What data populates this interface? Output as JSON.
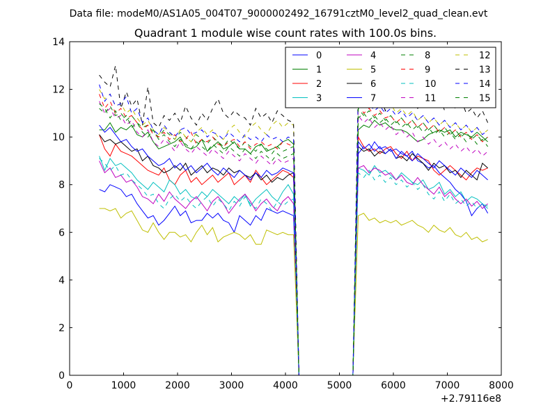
{
  "suptitle": "Data file: modeM0/AS1A05_004T07_9000002492_16791cztM0_level2_quad_clean.evt",
  "chart_data": {
    "type": "line",
    "title": "Quadrant 1 module wise count rates with 100.0s bins.",
    "xlabel": "",
    "ylabel": "",
    "x_offset_label": "+2.79116e8",
    "xlim": [
      0,
      8000
    ],
    "ylim": [
      0,
      14
    ],
    "xticks": [
      0,
      1000,
      2000,
      3000,
      4000,
      5000,
      6000,
      7000,
      8000
    ],
    "yticks": [
      0,
      2,
      4,
      6,
      8,
      10,
      12,
      14
    ],
    "grid": false,
    "legend_location": "top-right",
    "legend_columns": 4,
    "x": [
      550,
      650,
      750,
      850,
      950,
      1050,
      1150,
      1250,
      1350,
      1450,
      1550,
      1650,
      1750,
      1850,
      1950,
      2050,
      2150,
      2250,
      2350,
      2450,
      2550,
      2650,
      2750,
      2850,
      2950,
      3050,
      3150,
      3250,
      3350,
      3450,
      3550,
      3650,
      3750,
      3850,
      3950,
      4050,
      4150,
      4250,
      4350,
      4450,
      4550,
      4650,
      4750,
      4850,
      4950,
      5050,
      5150,
      5250,
      5350,
      5450,
      5550,
      5650,
      5750,
      5850,
      5950,
      6050,
      6150,
      6250,
      6350,
      6450,
      6550,
      6650,
      6750,
      6850,
      6950,
      7050,
      7150,
      7250,
      7350,
      7450,
      7550,
      7650,
      7750
    ],
    "series": [
      {
        "name": "0",
        "color": "#0000ff",
        "dash": "solid",
        "pre": [
          7.8,
          7.7,
          8.0,
          7.9,
          7.8,
          7.5,
          7.6,
          7.2,
          6.9,
          6.6,
          6.7,
          6.3,
          6.5,
          6.8,
          7.1,
          6.7,
          6.9,
          6.4,
          6.5,
          6.5,
          6.8,
          6.6,
          6.8,
          6.5,
          6.4,
          6.0,
          6.7,
          6.5,
          6.3,
          6.7,
          6.5,
          7.0,
          6.9,
          6.8,
          6.9,
          6.8,
          6.7
        ],
        "post": [
          9.3,
          9.6,
          9.4,
          9.8,
          9.5,
          9.6,
          9.4,
          9.5,
          9.3,
          9.2,
          9.4,
          9.0,
          8.9,
          8.7,
          8.8,
          8.5,
          8.3,
          8.1,
          7.8,
          7.6,
          7.3,
          6.7,
          7.0,
          7.2,
          6.8
        ]
      },
      {
        "name": "1",
        "color": "#007f00",
        "dash": "solid",
        "pre": [
          10.3,
          10.3,
          10.6,
          10.2,
          10.4,
          10.3,
          10.5,
          10.1,
          10.0,
          10.2,
          9.8,
          9.5,
          9.6,
          9.7,
          9.8,
          10.0,
          9.6,
          9.5,
          9.6,
          9.9,
          9.4,
          9.6,
          9.8,
          9.5,
          9.6,
          9.8,
          9.5,
          9.5,
          9.3,
          9.6,
          9.7,
          9.4,
          9.5,
          9.6,
          9.8,
          9.9,
          9.7
        ],
        "post": [
          10.3,
          10.5,
          10.4,
          10.7,
          10.5,
          10.6,
          10.4,
          10.3,
          10.3,
          10.2,
          10.0,
          9.8,
          9.9,
          10.1,
          10.2,
          10.3,
          10.2,
          10.3,
          10.0,
          10.2,
          10.1,
          10.0,
          10.2,
          10.0,
          9.8
        ]
      },
      {
        "name": "2",
        "color": "#ff0000",
        "dash": "solid",
        "pre": [
          10.1,
          9.5,
          9.2,
          9.7,
          9.4,
          9.3,
          9.2,
          9.0,
          8.8,
          8.6,
          8.5,
          8.4,
          8.7,
          8.2,
          8.0,
          8.4,
          8.6,
          8.1,
          8.3,
          8.0,
          8.2,
          8.4,
          8.1,
          8.3,
          8.5,
          8.0,
          8.2,
          8.4,
          8.1,
          8.6,
          8.3,
          8.0,
          8.2,
          8.4,
          8.6,
          8.5,
          8.3
        ],
        "post": [
          10.0,
          9.6,
          9.4,
          9.5,
          9.3,
          9.5,
          9.6,
          9.3,
          9.1,
          9.4,
          9.0,
          9.2,
          9.1,
          9.0,
          8.6,
          8.4,
          8.6,
          8.8,
          8.6,
          8.4,
          8.2,
          8.5,
          8.7,
          8.6,
          8.7
        ]
      },
      {
        "name": "3",
        "color": "#00bfbf",
        "dash": "solid",
        "pre": [
          9.2,
          8.6,
          9.1,
          8.8,
          8.9,
          8.7,
          8.5,
          8.2,
          8.0,
          7.8,
          8.1,
          7.9,
          7.7,
          8.2,
          8.0,
          7.6,
          7.8,
          7.5,
          7.4,
          7.7,
          7.5,
          7.8,
          7.6,
          7.4,
          7.2,
          7.5,
          7.3,
          7.6,
          7.1,
          7.4,
          7.6,
          7.8,
          7.5,
          7.3,
          7.7,
          8.0,
          7.6
        ],
        "post": [
          8.7,
          8.6,
          8.4,
          8.8,
          8.5,
          8.6,
          8.4,
          8.2,
          8.5,
          8.3,
          8.1,
          8.0,
          8.2,
          7.8,
          7.9,
          8.1,
          7.6,
          7.8,
          7.5,
          7.7,
          7.3,
          7.5,
          7.4,
          7.2,
          7.0
        ]
      },
      {
        "name": "4",
        "color": "#bf00bf",
        "dash": "solid",
        "pre": [
          9.0,
          8.5,
          8.7,
          8.3,
          8.4,
          8.1,
          8.2,
          7.9,
          7.5,
          7.4,
          7.2,
          7.6,
          7.3,
          7.7,
          7.4,
          7.2,
          7.0,
          7.3,
          7.5,
          7.2,
          6.9,
          7.3,
          7.5,
          7.2,
          6.8,
          7.1,
          7.4,
          7.6,
          7.3,
          6.9,
          7.2,
          7.4,
          7.1,
          6.9,
          7.3,
          7.5,
          7.2
        ],
        "post": [
          8.7,
          8.8,
          8.5,
          8.7,
          8.6,
          8.4,
          8.5,
          8.2,
          8.4,
          8.1,
          8.0,
          8.3,
          8.0,
          7.8,
          7.6,
          7.9,
          7.5,
          7.7,
          7.4,
          7.2,
          7.4,
          7.1,
          7.3,
          7.0,
          7.2
        ]
      },
      {
        "name": "5",
        "color": "#bfbf00",
        "dash": "solid",
        "pre": [
          7.0,
          7.0,
          6.9,
          7.0,
          6.6,
          6.8,
          6.9,
          6.5,
          6.1,
          6.0,
          6.4,
          6.0,
          5.7,
          6.0,
          6.0,
          5.8,
          5.9,
          5.6,
          6.0,
          6.3,
          5.9,
          6.2,
          5.6,
          5.8,
          5.9,
          6.0,
          5.9,
          5.7,
          5.9,
          5.5,
          5.5,
          6.1,
          6.0,
          5.9,
          6.0,
          5.9,
          5.9
        ],
        "post": [
          6.7,
          6.8,
          6.5,
          6.6,
          6.4,
          6.5,
          6.4,
          6.5,
          6.3,
          6.4,
          6.5,
          6.3,
          6.2,
          6.0,
          6.3,
          6.1,
          6.0,
          6.2,
          5.9,
          5.8,
          6.0,
          5.7,
          5.8,
          5.6,
          5.7
        ]
      },
      {
        "name": "6",
        "color": "#000000",
        "dash": "solid",
        "pre": [
          10.1,
          9.8,
          9.9,
          9.7,
          9.8,
          9.6,
          9.4,
          9.5,
          9.0,
          9.2,
          8.8,
          8.7,
          8.5,
          8.6,
          8.8,
          8.6,
          8.9,
          8.4,
          8.6,
          8.8,
          8.5,
          8.7,
          8.6,
          8.4,
          8.7,
          8.5,
          8.6,
          8.4,
          8.3,
          8.5,
          8.2,
          8.4,
          8.1,
          8.3,
          8.2,
          8.4,
          8.5
        ],
        "post": [
          9.6,
          9.4,
          9.5,
          9.2,
          9.4,
          9.3,
          9.5,
          9.1,
          9.2,
          9.0,
          9.3,
          9.1,
          8.9,
          8.6,
          8.9,
          8.7,
          8.8,
          8.5,
          8.6,
          8.3,
          8.6,
          8.4,
          8.2,
          8.9,
          8.7
        ]
      },
      {
        "name": "7",
        "color": "#0000ff",
        "dash": "solid",
        "pre": [
          10.5,
          10.2,
          10.4,
          10.1,
          9.8,
          9.9,
          9.6,
          9.4,
          9.5,
          9.2,
          9.0,
          8.8,
          8.9,
          9.1,
          8.7,
          8.9,
          8.6,
          8.8,
          8.5,
          8.7,
          8.9,
          8.6,
          8.4,
          8.7,
          8.5,
          8.3,
          8.6,
          8.4,
          8.2,
          8.5,
          8.3,
          8.6,
          8.4,
          8.5,
          8.7,
          8.6,
          8.5
        ],
        "post": [
          9.8,
          9.5,
          9.7,
          9.4,
          9.6,
          9.3,
          9.5,
          9.1,
          9.4,
          9.2,
          9.0,
          9.3,
          9.1,
          8.9,
          8.7,
          9.0,
          8.8,
          8.6,
          8.4,
          8.7,
          8.5,
          8.3,
          8.6,
          8.4,
          8.2
        ]
      },
      {
        "name": "8",
        "color": "#007f00",
        "dash": "dashed",
        "pre": [
          11.2,
          11.0,
          11.3,
          10.9,
          11.0,
          10.7,
          10.9,
          10.6,
          10.4,
          10.5,
          10.2,
          10.0,
          10.3,
          10.1,
          9.9,
          10.2,
          10.0,
          9.8,
          10.1,
          9.9,
          9.7,
          10.0,
          9.8,
          9.6,
          9.9,
          9.7,
          9.5,
          9.8,
          9.6,
          9.4,
          9.7,
          9.5,
          9.3,
          9.6,
          9.4,
          9.5,
          9.6
        ],
        "post": [
          10.8,
          11.0,
          10.7,
          10.9,
          10.6,
          10.8,
          10.5,
          10.7,
          10.4,
          10.6,
          10.3,
          10.5,
          10.2,
          10.4,
          10.1,
          10.3,
          10.0,
          10.2,
          9.9,
          10.1,
          9.8,
          10.0,
          9.7,
          9.9,
          9.6
        ]
      },
      {
        "name": "9",
        "color": "#ff0000",
        "dash": "dashed",
        "pre": [
          11.8,
          11.2,
          11.5,
          11.0,
          11.2,
          10.8,
          10.9,
          10.6,
          10.3,
          10.5,
          10.1,
          10.0,
          10.2,
          9.9,
          10.1,
          9.8,
          9.9,
          10.2,
          9.7,
          9.9,
          9.8,
          10.0,
          9.7,
          9.6,
          9.8,
          9.9,
          9.6,
          9.8,
          9.5,
          9.7,
          9.8,
          9.6,
          9.7,
          9.5,
          9.8,
          9.7,
          9.6
        ],
        "post": [
          11.5,
          11.0,
          11.2,
          10.9,
          11.1,
          10.8,
          10.9,
          10.6,
          10.8,
          10.5,
          10.7,
          10.4,
          10.6,
          10.3,
          10.5,
          10.2,
          10.4,
          10.1,
          10.3,
          10.0,
          10.2,
          9.9,
          10.1,
          9.8,
          10.0
        ]
      },
      {
        "name": "10",
        "color": "#00bfbf",
        "dash": "dashed",
        "pre": [
          9.1,
          8.9,
          8.6,
          8.8,
          8.4,
          8.5,
          8.2,
          8.0,
          7.8,
          7.5,
          7.6,
          7.2,
          7.0,
          7.4,
          7.6,
          7.3,
          7.5,
          7.2,
          7.0,
          7.3,
          7.5,
          7.1,
          7.4,
          7.2,
          6.9,
          7.3,
          7.1,
          7.5,
          7.2,
          7.0,
          7.4,
          7.2,
          6.9,
          7.3,
          7.1,
          7.3,
          7.4
        ],
        "post": [
          8.5,
          8.3,
          8.6,
          8.2,
          8.4,
          8.1,
          8.3,
          8.0,
          8.2,
          7.9,
          8.1,
          7.8,
          8.0,
          7.6,
          7.4,
          7.7,
          7.3,
          7.6,
          7.2,
          7.4,
          7.1,
          7.3,
          7.0,
          7.2,
          7.1
        ]
      },
      {
        "name": "11",
        "color": "#bf00bf",
        "dash": "dashed",
        "pre": [
          11.5,
          11.0,
          11.2,
          10.8,
          10.9,
          10.5,
          10.7,
          10.2,
          10.0,
          10.3,
          9.8,
          9.6,
          9.9,
          9.7,
          9.4,
          9.8,
          9.5,
          9.3,
          9.6,
          9.4,
          9.2,
          9.5,
          9.3,
          9.1,
          9.4,
          9.2,
          9.0,
          9.3,
          9.1,
          8.9,
          9.2,
          9.0,
          8.8,
          9.1,
          8.9,
          9.0,
          9.1
        ],
        "post": [
          10.9,
          10.6,
          10.8,
          10.4,
          10.6,
          10.3,
          10.5,
          10.1,
          10.3,
          10.0,
          10.2,
          9.8,
          10.0,
          9.7,
          9.9,
          9.6,
          9.8,
          9.5,
          9.7,
          9.4,
          9.6,
          9.3,
          9.5,
          9.2,
          9.4
        ]
      },
      {
        "name": "12",
        "color": "#bfbf00",
        "dash": "dashed",
        "pre": [
          12.0,
          11.6,
          11.8,
          11.3,
          11.4,
          11.0,
          11.2,
          10.8,
          10.5,
          10.7,
          10.3,
          10.1,
          10.4,
          10.2,
          9.9,
          10.3,
          10.0,
          9.8,
          10.2,
          10.4,
          10.1,
          10.3,
          10.0,
          9.9,
          10.3,
          10.5,
          10.2,
          10.0,
          10.4,
          10.6,
          10.3,
          10.1,
          10.5,
          10.7,
          10.4,
          10.6,
          10.5
        ],
        "post": [
          11.8,
          11.5,
          11.7,
          11.3,
          11.5,
          11.2,
          11.4,
          11.0,
          11.2,
          10.9,
          11.1,
          10.7,
          10.9,
          10.6,
          10.8,
          10.5,
          10.7,
          10.4,
          10.6,
          10.3,
          10.5,
          10.2,
          10.4,
          10.1,
          10.3
        ]
      },
      {
        "name": "13",
        "color": "#000000",
        "dash": "dashed",
        "pre": [
          12.6,
          12.3,
          12.1,
          13.0,
          11.2,
          11.9,
          11.3,
          11.6,
          10.5,
          12.1,
          10.6,
          10.4,
          10.9,
          10.7,
          11.0,
          10.6,
          11.3,
          10.8,
          10.5,
          11.0,
          10.7,
          11.2,
          11.6,
          11.0,
          10.8,
          11.1,
          10.9,
          10.8,
          10.5,
          11.2,
          10.8,
          11.0,
          10.6,
          11.1,
          10.9,
          10.7,
          10.6
        ],
        "post": [
          12.1,
          11.3,
          11.7,
          11.4,
          11.8,
          11.1,
          11.6,
          11.3,
          11.5,
          11.2,
          11.7,
          11.2,
          11.5,
          11.6,
          11.3,
          11.8,
          11.1,
          11.4,
          11.2,
          11.6,
          11.0,
          11.2,
          10.8,
          11.1,
          10.6
        ]
      },
      {
        "name": "14",
        "color": "#0000ff",
        "dash": "dashed",
        "pre": [
          12.2,
          11.5,
          11.8,
          11.3,
          11.4,
          11.7,
          11.0,
          11.2,
          10.6,
          10.8,
          10.3,
          10.1,
          10.5,
          10.2,
          10.0,
          10.3,
          10.4,
          10.1,
          10.2,
          10.3,
          10.0,
          10.2,
          10.1,
          9.9,
          10.2,
          10.0,
          9.8,
          10.1,
          9.9,
          10.0,
          9.8,
          10.1,
          9.9,
          10.0,
          9.8,
          10.0,
          9.9
        ],
        "post": [
          11.9,
          11.2,
          11.4,
          11.1,
          11.3,
          11.0,
          11.2,
          10.9,
          11.1,
          10.8,
          11.0,
          10.7,
          10.9,
          10.6,
          10.8,
          10.5,
          10.7,
          10.4,
          10.6,
          10.3,
          10.5,
          10.2,
          10.4,
          10.1,
          10.3
        ]
      },
      {
        "name": "15",
        "color": "#007f00",
        "dash": "dashed",
        "pre": [
          11.4,
          11.2,
          10.8,
          11.1,
          10.7,
          10.9,
          10.4,
          10.6,
          10.2,
          10.0,
          10.3,
          9.9,
          10.1,
          9.8,
          9.6,
          9.9,
          9.7,
          9.5,
          9.8,
          9.6,
          9.4,
          9.7,
          9.5,
          9.3,
          9.6,
          9.4,
          9.2,
          9.5,
          9.3,
          9.1,
          9.4,
          9.2,
          9.0,
          9.3,
          9.1,
          9.2,
          9.3
        ],
        "post": [
          11.2,
          10.9,
          11.1,
          10.8,
          11.0,
          10.7,
          10.9,
          10.6,
          10.8,
          10.5,
          10.7,
          10.4,
          10.6,
          10.3,
          10.5,
          10.2,
          10.4,
          10.1,
          10.3,
          10.0,
          10.2,
          9.9,
          10.1,
          9.8,
          10.0
        ]
      }
    ]
  }
}
